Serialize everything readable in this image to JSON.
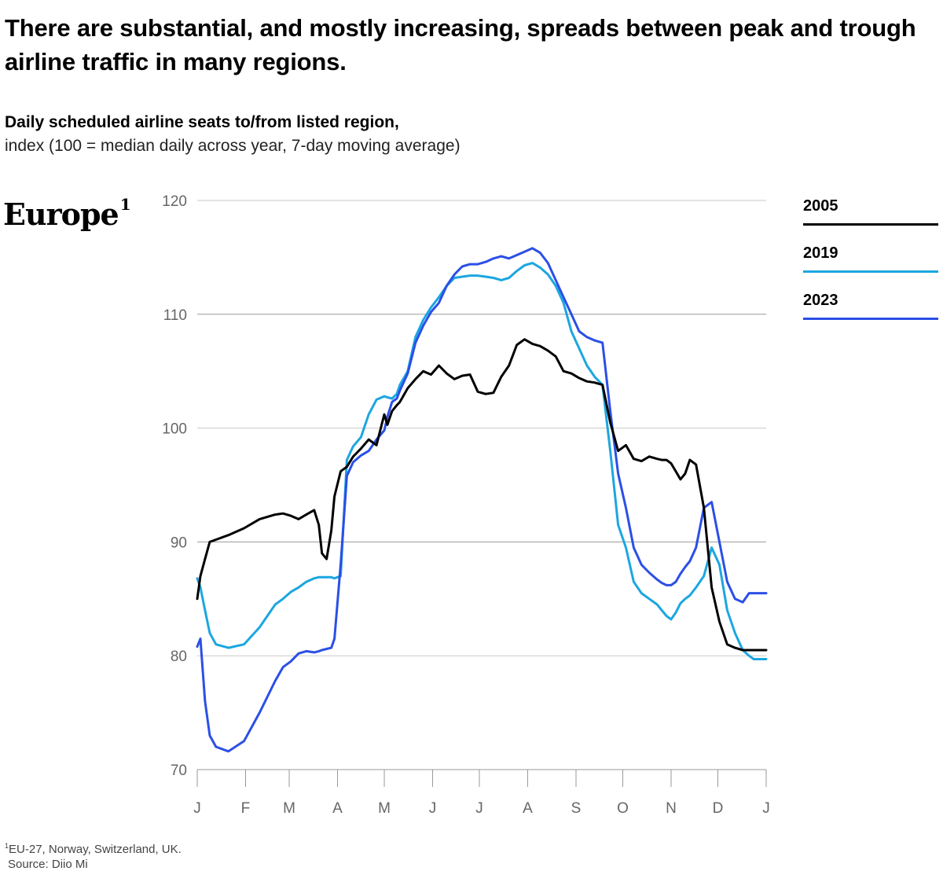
{
  "title": "There are substantial, and mostly increasing, spreads between peak and trough airline traffic in many regions.",
  "subtitle_bold": "Daily scheduled airline seats to/from listed region,",
  "subtitle_regular": "index (100 = median daily across year, 7-day moving average)",
  "region_label": "Europe",
  "region_footnote_marker": "1",
  "footnote_marker": "1",
  "footnote_text": "EU-27, Norway, Switzerland, UK.",
  "source": "Source: Diio Mi",
  "chart_data": {
    "type": "line",
    "title": "Europe",
    "xlabel": "",
    "ylabel": "Index (100 = median daily across year, 7-day moving average)",
    "ylim": [
      70,
      120
    ],
    "yticks": [
      70,
      80,
      90,
      100,
      110,
      120
    ],
    "xlim": [
      0,
      365
    ],
    "xticks": [
      0,
      31,
      59,
      90,
      120,
      151,
      181,
      212,
      243,
      273,
      304,
      334,
      365
    ],
    "xtick_labels": [
      "J",
      "F",
      "M",
      "A",
      "M",
      "J",
      "J",
      "A",
      "S",
      "O",
      "N",
      "D",
      "J"
    ],
    "grid": true,
    "legend_position": "top-right",
    "x": [
      0,
      2,
      5,
      8,
      12,
      20,
      30,
      40,
      50,
      55,
      60,
      65,
      70,
      75,
      78,
      80,
      83,
      86,
      88,
      92,
      96,
      100,
      105,
      110,
      115,
      120,
      122,
      125,
      128,
      130,
      135,
      140,
      145,
      150,
      155,
      160,
      165,
      170,
      175,
      180,
      185,
      190,
      195,
      200,
      205,
      210,
      215,
      220,
      225,
      230,
      235,
      240,
      245,
      250,
      255,
      260,
      265,
      270,
      275,
      280,
      285,
      290,
      295,
      298,
      301,
      304,
      307,
      310,
      313,
      316,
      320,
      325,
      330,
      335,
      340,
      345,
      350,
      354,
      357,
      359,
      361,
      363,
      365
    ],
    "series": [
      {
        "name": "2005",
        "color": "#000000",
        "values": [
          85.0,
          87.0,
          88.5,
          90.0,
          90.2,
          90.6,
          91.2,
          92.0,
          92.4,
          92.5,
          92.3,
          92.0,
          92.4,
          92.8,
          91.5,
          89.0,
          88.5,
          91.0,
          94.0,
          96.2,
          96.6,
          97.5,
          98.2,
          99.0,
          98.5,
          101.2,
          100.3,
          101.5,
          102.0,
          102.3,
          103.5,
          104.3,
          105.0,
          104.7,
          105.5,
          104.8,
          104.3,
          104.6,
          104.7,
          103.2,
          103.0,
          103.1,
          104.5,
          105.5,
          107.3,
          107.8,
          107.4,
          107.2,
          106.8,
          106.3,
          105.0,
          104.8,
          104.4,
          104.1,
          104.0,
          103.8,
          100.5,
          98.0,
          98.5,
          97.3,
          97.1,
          97.5,
          97.3,
          97.2,
          97.2,
          96.9,
          96.2,
          95.5,
          96.0,
          97.2,
          96.8,
          93.0,
          86.0,
          83.0,
          81.0,
          80.7,
          80.5,
          80.5,
          80.5,
          80.5,
          80.5,
          80.5,
          80.5
        ]
      },
      {
        "name": "2019",
        "color": "#1ca6e0",
        "values": [
          86.8,
          86.0,
          84.0,
          82.0,
          81.0,
          80.7,
          81.0,
          82.5,
          84.5,
          85.0,
          85.6,
          86.0,
          86.5,
          86.8,
          86.9,
          86.9,
          86.9,
          86.9,
          86.8,
          87.0,
          97.2,
          98.4,
          99.2,
          101.2,
          102.5,
          102.8,
          102.7,
          102.6,
          103.0,
          103.8,
          105.0,
          108.0,
          109.5,
          110.6,
          111.5,
          112.5,
          113.2,
          113.3,
          113.4,
          113.4,
          113.3,
          113.2,
          113.0,
          113.2,
          113.8,
          114.3,
          114.5,
          114.1,
          113.5,
          112.5,
          111.0,
          108.5,
          107.0,
          105.5,
          104.5,
          103.8,
          98.0,
          91.5,
          89.5,
          86.5,
          85.5,
          85.0,
          84.5,
          84.0,
          83.5,
          83.2,
          83.8,
          84.6,
          85.0,
          85.3,
          86.0,
          87.0,
          89.5,
          88.0,
          84.0,
          82.0,
          80.5,
          80.0,
          79.7,
          79.7,
          79.7,
          79.7,
          79.7
        ]
      },
      {
        "name": "2023",
        "color": "#2b4fe6",
        "values": [
          80.8,
          81.5,
          76.0,
          73.0,
          72.0,
          71.6,
          72.5,
          75.0,
          77.8,
          79.0,
          79.5,
          80.2,
          80.4,
          80.3,
          80.4,
          80.5,
          80.6,
          80.7,
          81.5,
          88.0,
          95.8,
          97.0,
          97.6,
          98.0,
          99.0,
          99.8,
          101.0,
          102.3,
          102.6,
          103.3,
          104.8,
          107.5,
          109.0,
          110.2,
          111.0,
          112.5,
          113.5,
          114.2,
          114.4,
          114.4,
          114.6,
          114.9,
          115.1,
          114.9,
          115.2,
          115.5,
          115.8,
          115.4,
          114.5,
          113.0,
          111.5,
          110.0,
          108.5,
          108.0,
          107.7,
          107.5,
          101.5,
          96.0,
          93.0,
          89.5,
          88.0,
          87.3,
          86.7,
          86.4,
          86.2,
          86.2,
          86.5,
          87.2,
          87.8,
          88.3,
          89.5,
          93.0,
          93.5,
          90.0,
          86.5,
          85.0,
          84.7,
          85.5,
          85.5,
          85.5,
          85.5,
          85.5,
          85.5
        ]
      }
    ]
  }
}
